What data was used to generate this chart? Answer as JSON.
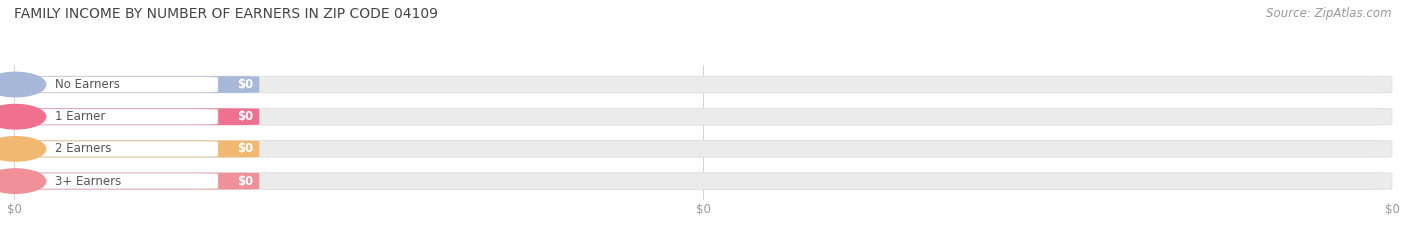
{
  "title": "FAMILY INCOME BY NUMBER OF EARNERS IN ZIP CODE 04109",
  "source": "Source: ZipAtlas.com",
  "categories": [
    "No Earners",
    "1 Earner",
    "2 Earners",
    "3+ Earners"
  ],
  "values": [
    0,
    0,
    0,
    0
  ],
  "bar_colors": [
    "#a8b8d8",
    "#f07090",
    "#f0b870",
    "#f09098"
  ],
  "circle_colors": [
    "#a8b8d8",
    "#f07090",
    "#f0b870",
    "#f09098"
  ],
  "value_pill_colors": [
    "#a8b8d8",
    "#f07090",
    "#f0b870",
    "#f09098"
  ],
  "track_color": "#ebebeb",
  "track_edge_color": "#dedede",
  "white_pill_color": "#ffffff",
  "label_text_color": "#555555",
  "value_text_color": "#ffffff",
  "tick_text_color": "#999999",
  "title_color": "#444444",
  "source_color": "#999999",
  "bg_color": "#ffffff",
  "title_fontsize": 10,
  "source_fontsize": 8.5,
  "label_fontsize": 8.5,
  "value_fontsize": 8.5,
  "tick_fontsize": 8.5
}
